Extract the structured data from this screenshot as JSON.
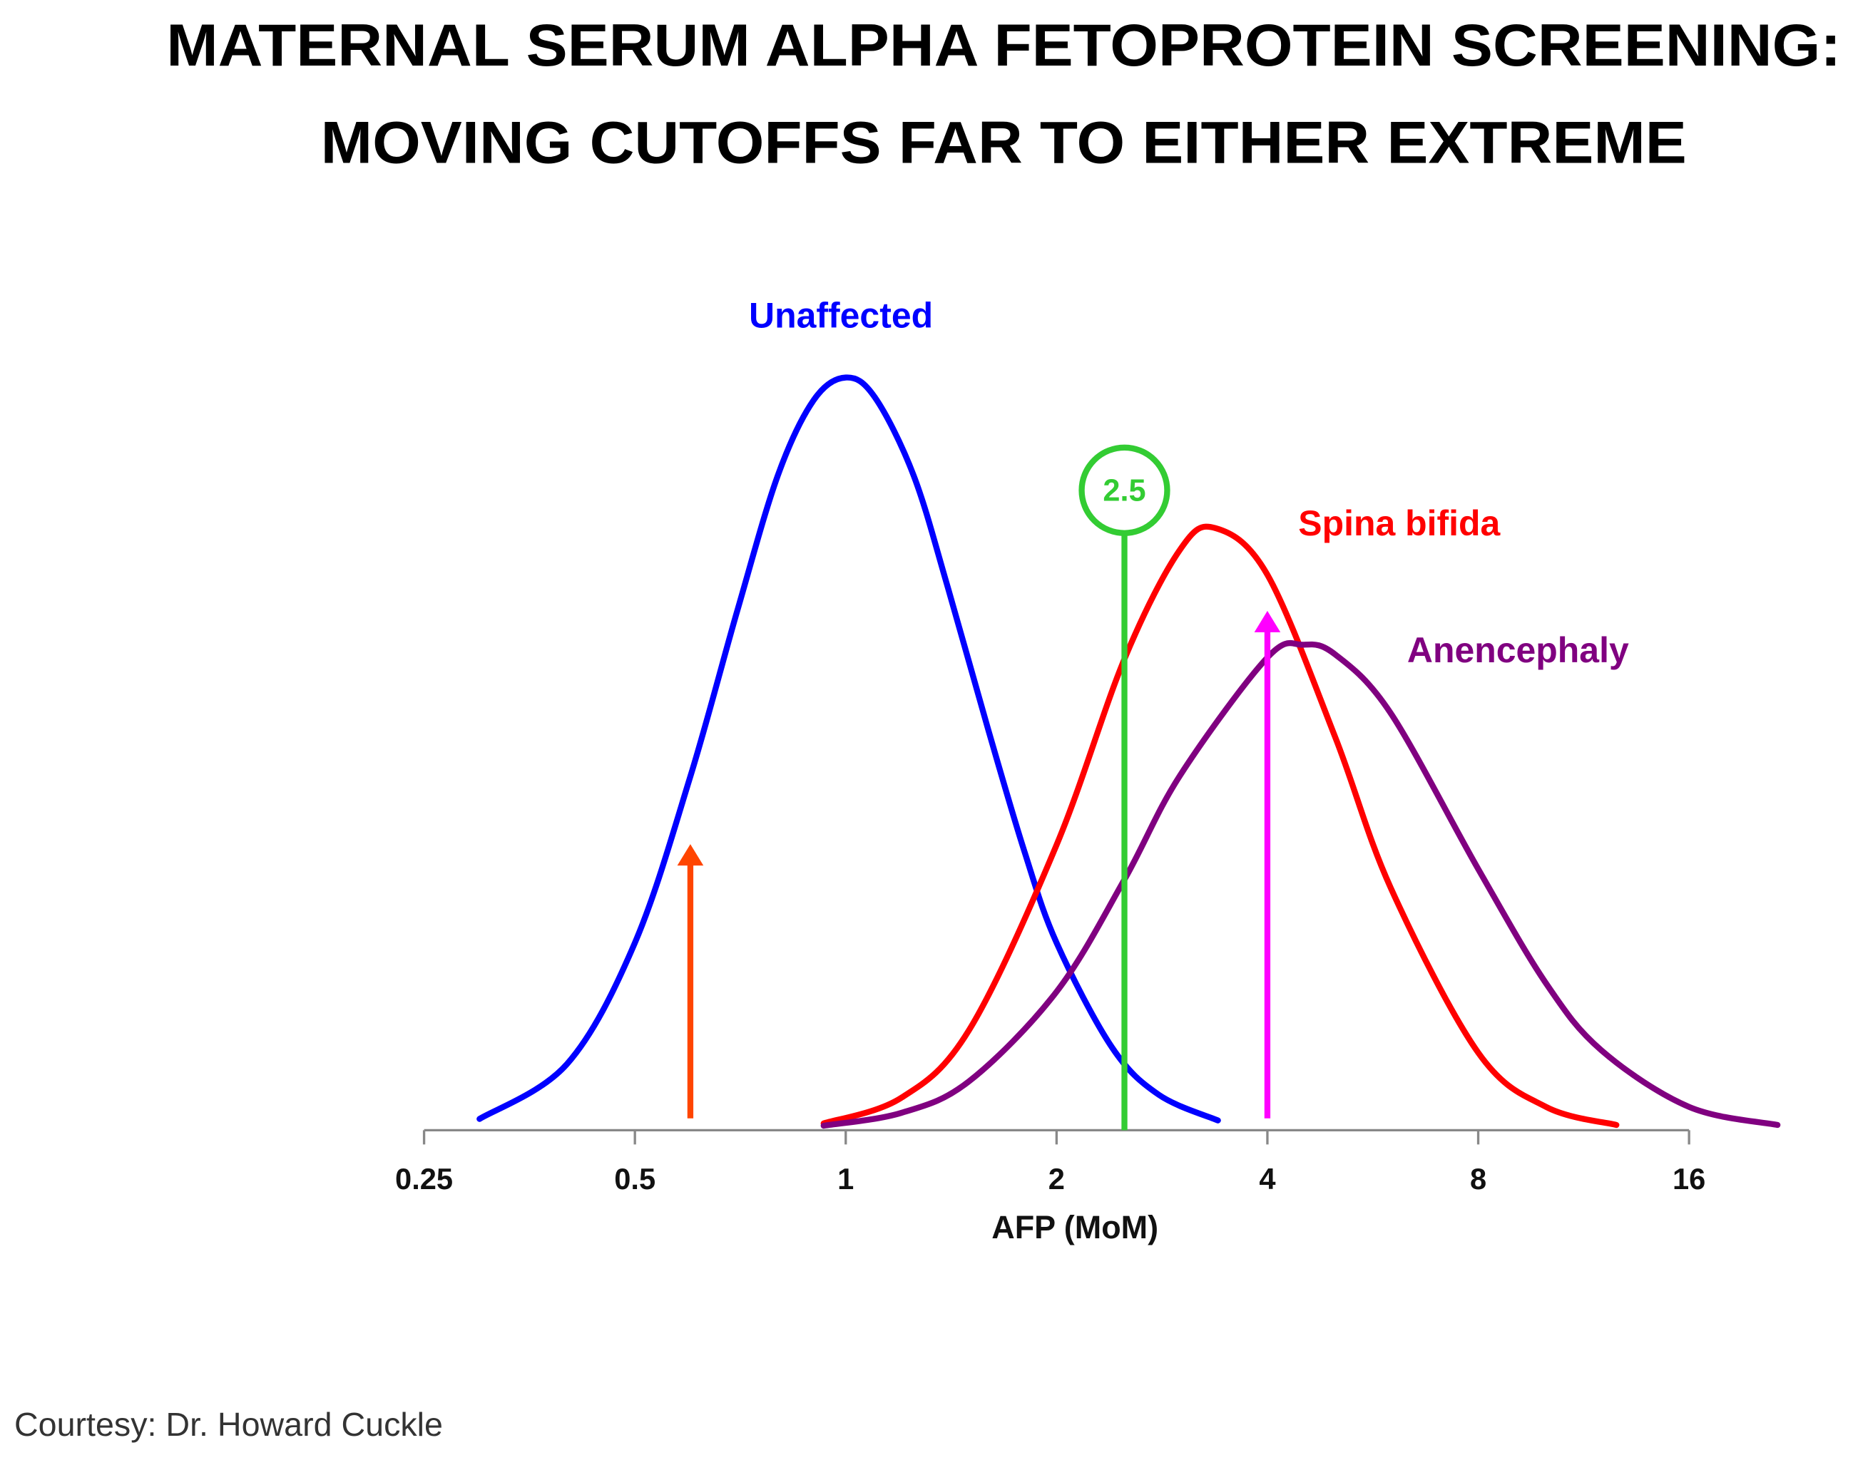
{
  "chart_data": {
    "type": "line",
    "title": "MATERNAL SERUM ALPHA FETOPROTEIN SCREENING:",
    "subtitle": "MOVING CUTOFFS FAR TO EITHER EXTREME",
    "x_label": "AFP (MoM)",
    "log_x": true,
    "xlim": [
      0.25,
      16
    ],
    "xticks": [
      0.25,
      0.5,
      1,
      2,
      4,
      8,
      16
    ],
    "ylim": [
      0,
      100
    ],
    "series": [
      {
        "name": "Unaffected",
        "color": "#0000ff",
        "x": [
          0.3,
          0.4,
          0.5,
          0.6,
          0.7,
          0.8,
          0.9,
          1,
          1.1,
          1.25,
          1.4,
          1.6,
          1.8,
          2,
          2.4,
          2.8,
          3.4
        ],
        "values": [
          1.5,
          8.8,
          24.9,
          47,
          69,
          87,
          97,
          100,
          97.4,
          87,
          72,
          53,
          37,
          24.9,
          11,
          4.7,
          1.3
        ]
      },
      {
        "name": "Spina bifida",
        "color": "#ff0000",
        "x": [
          0.93,
          1.2,
          1.5,
          2,
          2.5,
          3,
          3.37,
          4,
          5,
          6,
          8,
          10,
          12.6
        ],
        "values": [
          0.9,
          4.3,
          13.3,
          37.9,
          62.6,
          77.1,
          80,
          73.8,
          52.2,
          32.2,
          10.3,
          3.1,
          0.7
        ]
      },
      {
        "name": "Anencephaly",
        "color": "#800080",
        "x": [
          0.93,
          1.2,
          1.5,
          2,
          2.5,
          3,
          4,
          4.5,
          5,
          6,
          8,
          10,
          12,
          16,
          21.4
        ],
        "values": [
          0.6,
          2.3,
          6.5,
          18.4,
          33.3,
          47.1,
          62.8,
          64.5,
          63.2,
          55.4,
          34.7,
          19.5,
          10.6,
          3.1,
          0.7
        ]
      }
    ],
    "cutoff": 2.5,
    "cutoff_color": "#33cc33",
    "arrows": [
      {
        "x": 0.6,
        "value": 38,
        "color": "#ff4500"
      },
      {
        "x": 4,
        "value": 69,
        "color": "#ff00ff"
      }
    ],
    "credit": "Courtesy: Dr. Howard Cuckle"
  }
}
